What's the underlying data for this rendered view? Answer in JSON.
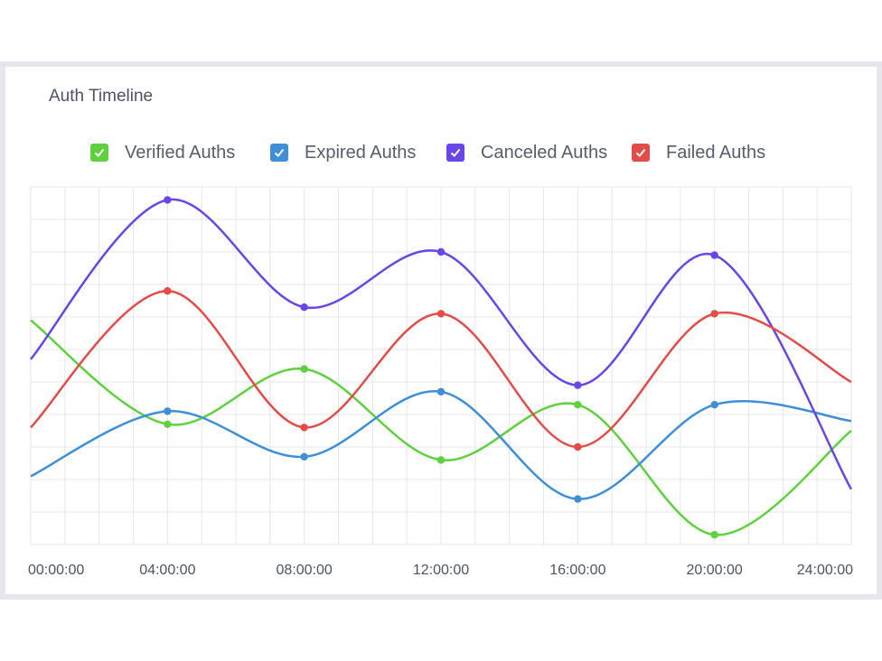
{
  "chart_data": {
    "type": "line",
    "title": "Auth Timeline",
    "x": [
      "00:00:00",
      "04:00:00",
      "08:00:00",
      "12:00:00",
      "16:00:00",
      "20:00:00",
      "24:00:00"
    ],
    "legend_position": "top",
    "grid": true,
    "ylim": [
      0,
      11
    ],
    "series": [
      {
        "name": "Verified Auths",
        "color": "#5fd13e",
        "values": [
          6.9,
          3.7,
          5.4,
          2.6,
          4.3,
          0.3,
          3.5
        ],
        "checked": true
      },
      {
        "name": "Expired Auths",
        "color": "#3f8fd8",
        "values": [
          2.1,
          4.1,
          2.7,
          4.7,
          1.4,
          4.3,
          3.8
        ],
        "checked": true
      },
      {
        "name": "Canceled Auths",
        "color": "#6a45e8",
        "values": [
          5.7,
          10.6,
          7.3,
          9.0,
          4.9,
          8.9,
          1.7
        ],
        "checked": true
      },
      {
        "name": "Failed Auths",
        "color": "#e54b47",
        "values": [
          3.6,
          7.8,
          3.6,
          7.1,
          3.0,
          7.1,
          5.0
        ],
        "checked": true
      }
    ]
  }
}
